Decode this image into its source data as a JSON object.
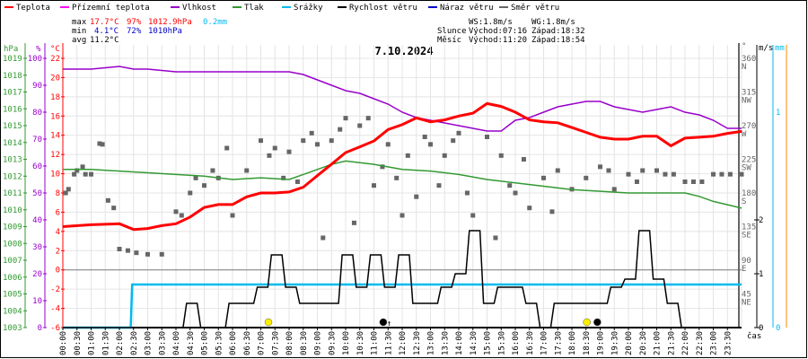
{
  "legend": [
    {
      "label": "Teplota",
      "color": "#ff0000"
    },
    {
      "label": "Přízemní teplota",
      "color": "#ff00ff"
    },
    {
      "label": "Vlhkost",
      "color": "#9900cc"
    },
    {
      "label": "Tlak",
      "color": "#339933"
    },
    {
      "label": "Srážky",
      "color": "#00bbee"
    },
    {
      "label": "Rychlost větru",
      "color": "#000000"
    },
    {
      "label": "Náraz větru",
      "color": "#0000cc"
    },
    {
      "label": "Směr větru",
      "color": "#666666"
    }
  ],
  "stats": {
    "max_label": "max",
    "max_temp": "17.7°C",
    "max_hum": "97%",
    "max_press": "1012.9hPa",
    "max_rain": "0.2mm",
    "min_label": "min",
    "min_temp": "4.1°C",
    "min_hum": "72%",
    "min_press": "1010hPa",
    "avg_label": "avg",
    "avg_temp": "11.2°C"
  },
  "astro": {
    "ws": "WS:1.8m/s",
    "wg": "WG:1.8m/s",
    "sun_label": "Slunce",
    "sun_rise": "Východ:07:16",
    "sun_set": "Západ:18:32",
    "moon_label": "Měsíc",
    "moon_rise": "Východ:11:20",
    "moon_set": "Západ:18:54"
  },
  "chart_data": {
    "type": "line",
    "title": "7.10.2024",
    "xlabel": "čas",
    "x_ticks": [
      "00:00",
      "00:30",
      "01:00",
      "01:30",
      "02:00",
      "02:30",
      "03:00",
      "03:30",
      "04:00",
      "04:30",
      "05:00",
      "05:30",
      "06:00",
      "06:30",
      "07:00",
      "07:30",
      "08:00",
      "08:30",
      "09:00",
      "09:30",
      "10:00",
      "10:30",
      "11:00",
      "11:30",
      "12:00",
      "12:30",
      "13:00",
      "13:30",
      "14:00",
      "14:30",
      "15:00",
      "15:30",
      "16:00",
      "16:30",
      "17:00",
      "17:30",
      "18:00",
      "18:30",
      "19:00",
      "19:30",
      "20:00",
      "20:30",
      "21:00",
      "21:30",
      "22:00",
      "22:30",
      "23:00",
      "23:30"
    ],
    "axes": {
      "pressure": {
        "unit": "hPa",
        "range": [
          1003,
          1019
        ],
        "ticks": [
          "1019",
          "1018",
          "1017",
          "1016",
          "1015",
          "1014",
          "1013",
          "1012",
          "1011",
          "1010",
          "1009",
          "1008",
          "1007",
          "1006",
          "1005",
          "1004",
          "1003"
        ]
      },
      "humidity": {
        "unit": "%",
        "range": [
          0,
          100
        ],
        "ticks": [
          "100",
          "90",
          "80",
          "70",
          "60",
          "50",
          "40",
          "30",
          "20",
          "10",
          "0"
        ]
      },
      "temperature": {
        "unit": "°C",
        "range": [
          -6,
          22
        ],
        "ticks": [
          "22",
          "20",
          "18",
          "16",
          "14",
          "12",
          "10",
          "8",
          "6",
          "4",
          "2",
          "0",
          "-2",
          "-4",
          "-6"
        ]
      },
      "direction": {
        "unit": "°",
        "range": [
          0,
          360
        ],
        "ticks": [
          {
            "v": "360",
            "d": "N"
          },
          {
            "v": "315",
            "d": "NW"
          },
          {
            "v": "270",
            "d": "W"
          },
          {
            "v": "225",
            "d": "SW"
          },
          {
            "v": "180",
            "d": "S"
          },
          {
            "v": "135",
            "d": "SE"
          },
          {
            "v": "90",
            "d": "E"
          },
          {
            "v": "45",
            "d": "NE"
          }
        ]
      },
      "wind": {
        "unit": "m/s",
        "range": [
          0,
          5
        ],
        "ticks": [
          "2",
          "1",
          "0"
        ]
      },
      "rain": {
        "unit": "mm",
        "range": [
          0,
          1.25
        ],
        "ticks": [
          "1",
          "0"
        ]
      }
    },
    "series": [
      {
        "name": "Teplota",
        "axis": "temperature",
        "x": [
          0,
          1,
          2,
          2.5,
          3,
          3.5,
          4,
          4.5,
          5,
          5.5,
          6,
          6.5,
          7,
          7.5,
          8,
          8.5,
          9,
          9.5,
          10,
          10.5,
          11,
          11.5,
          12,
          12.5,
          13,
          13.5,
          14,
          14.5,
          15,
          15.5,
          16,
          16.5,
          17,
          17.5,
          18,
          18.5,
          19,
          19.5,
          20,
          20.5,
          21,
          21.5,
          22,
          22.5,
          23,
          23.5,
          24
        ],
        "y": [
          4.5,
          4.7,
          4.8,
          4.2,
          4.3,
          4.6,
          4.8,
          5.5,
          6.5,
          6.8,
          6.8,
          7.6,
          8.0,
          8.0,
          8.1,
          8.6,
          9.8,
          11.0,
          12.2,
          12.8,
          13.4,
          14.6,
          15.1,
          15.8,
          15.4,
          15.6,
          16.0,
          16.3,
          17.3,
          17.0,
          16.4,
          15.6,
          15.4,
          15.3,
          14.8,
          14.3,
          13.8,
          13.6,
          13.6,
          13.9,
          13.9,
          12.9,
          13.7,
          13.8,
          13.9,
          14.2,
          14.4
        ]
      },
      {
        "name": "Vlhkost",
        "axis": "humidity",
        "x": [
          0,
          1,
          2,
          2.5,
          3,
          4,
          5,
          6,
          7,
          8,
          8.5,
          9,
          9.5,
          10,
          10.5,
          11,
          11.5,
          12,
          12.5,
          13,
          13.5,
          14,
          14.5,
          15,
          15.5,
          16,
          16.5,
          17,
          17.5,
          18,
          18.5,
          19,
          19.5,
          20,
          20.5,
          21,
          21.5,
          22,
          22.5,
          23,
          23.5,
          24
        ],
        "y": [
          96,
          96,
          97,
          96,
          96,
          95,
          95,
          95,
          95,
          95,
          94,
          92,
          90,
          88,
          87,
          85,
          83,
          80,
          78,
          77,
          76,
          75,
          74,
          73,
          73,
          77,
          78,
          80,
          82,
          83,
          84,
          84,
          82,
          81,
          80,
          81,
          82,
          80,
          79,
          77,
          74,
          74
        ]
      },
      {
        "name": "Tlak",
        "axis": "pressure",
        "x": [
          0,
          1,
          2,
          3,
          4,
          5,
          6,
          7,
          8,
          8.5,
          9,
          9.5,
          10,
          11,
          12,
          13,
          14,
          15,
          16,
          17,
          18,
          19,
          20,
          21,
          22,
          22.5,
          23,
          23.5,
          24
        ],
        "y": [
          1012.4,
          1012.4,
          1012.3,
          1012.2,
          1012.1,
          1012.0,
          1011.8,
          1011.9,
          1011.8,
          1012.1,
          1012.4,
          1012.7,
          1012.9,
          1012.7,
          1012.4,
          1012.3,
          1012.1,
          1011.8,
          1011.6,
          1011.4,
          1011.2,
          1011.1,
          1011.0,
          1011.0,
          1011.0,
          1010.8,
          1010.5,
          1010.3,
          1010.1
        ]
      },
      {
        "name": "Srážky",
        "axis": "rain",
        "x": [
          0,
          2.4,
          2.45,
          24
        ],
        "y": [
          0,
          0,
          0.2,
          0.2
        ]
      },
      {
        "name": "Rychlost větru",
        "axis": "wind",
        "x": [
          0,
          0.5,
          1,
          1.5,
          2,
          2.5,
          3,
          3.5,
          4,
          4.5,
          5,
          5.5,
          6,
          6.5,
          7,
          7.5,
          8,
          8.5,
          9,
          9.5,
          10,
          10.5,
          11,
          11.5,
          12,
          12.5,
          13,
          13.5,
          14,
          14.5,
          15,
          15.5,
          16,
          16.5,
          17,
          17.5,
          18,
          18.5,
          19,
          19.5,
          20,
          20.5,
          21,
          21.5,
          22,
          22.5,
          23,
          23.5,
          24
        ],
        "y": [
          0,
          0,
          0,
          0,
          0,
          0,
          0,
          0,
          0,
          0.45,
          0,
          0,
          0.45,
          0.45,
          0.75,
          1.35,
          0.75,
          0.45,
          0.45,
          0.45,
          1.35,
          0.75,
          1.35,
          0.75,
          1.35,
          0.45,
          0.45,
          0.75,
          1.0,
          1.8,
          0.45,
          0.75,
          0.75,
          0.45,
          0,
          0.45,
          0.45,
          0.45,
          0.45,
          0.75,
          0.9,
          1.8,
          0.9,
          0.45,
          0,
          0,
          0,
          0,
          0
        ]
      },
      {
        "name": "Směr větru",
        "axis": "direction",
        "kind": "scatter",
        "x": [
          0.1,
          0.2,
          0.4,
          0.5,
          0.7,
          0.8,
          1.0,
          1.3,
          1.4,
          1.6,
          1.8,
          2.0,
          2.3,
          2.6,
          3.0,
          3.5,
          4.0,
          4.2,
          4.5,
          4.7,
          5.0,
          5.3,
          5.5,
          5.8,
          6.0,
          6.5,
          7.0,
          7.3,
          7.5,
          7.8,
          8.0,
          8.3,
          8.5,
          8.8,
          9.0,
          9.2,
          9.5,
          9.8,
          10.0,
          10.3,
          10.5,
          10.8,
          11.0,
          11.3,
          11.5,
          11.8,
          12.0,
          12.2,
          12.5,
          12.8,
          13.0,
          13.3,
          13.5,
          13.8,
          14.0,
          14.3,
          14.5,
          15.0,
          15.3,
          15.5,
          15.8,
          16.0,
          16.3,
          16.5,
          17.0,
          17.3,
          17.5,
          18.0,
          18.5,
          19.0,
          19.3,
          19.5,
          20.0,
          20.3,
          20.5,
          21.0,
          21.3,
          21.6,
          22.0,
          22.3,
          22.6,
          23.0,
          23.3,
          23.6,
          24.0
        ],
        "y": [
          180,
          185,
          205,
          210,
          215,
          205,
          205,
          246,
          245,
          170,
          160,
          105,
          103,
          100,
          98,
          98,
          155,
          150,
          180,
          200,
          190,
          210,
          200,
          240,
          150,
          210,
          250,
          230,
          240,
          200,
          235,
          195,
          250,
          260,
          245,
          120,
          250,
          265,
          280,
          140,
          270,
          280,
          190,
          215,
          245,
          200,
          150,
          230,
          175,
          255,
          245,
          190,
          230,
          250,
          260,
          180,
          150,
          255,
          120,
          230,
          190,
          180,
          225,
          160,
          200,
          155,
          210,
          185,
          200,
          215,
          210,
          185,
          205,
          195,
          210,
          210,
          205,
          205,
          195,
          195,
          195,
          205,
          205,
          205,
          205
        ]
      }
    ],
    "markers": [
      {
        "name": "sunrise",
        "time": 7.27,
        "color": "#ffee00"
      },
      {
        "name": "moonrise",
        "time": 11.33,
        "color": "#000000"
      },
      {
        "name": "sunset",
        "time": 18.53,
        "color": "#ffee00"
      },
      {
        "name": "moonset",
        "time": 18.9,
        "color": "#000000"
      }
    ]
  }
}
